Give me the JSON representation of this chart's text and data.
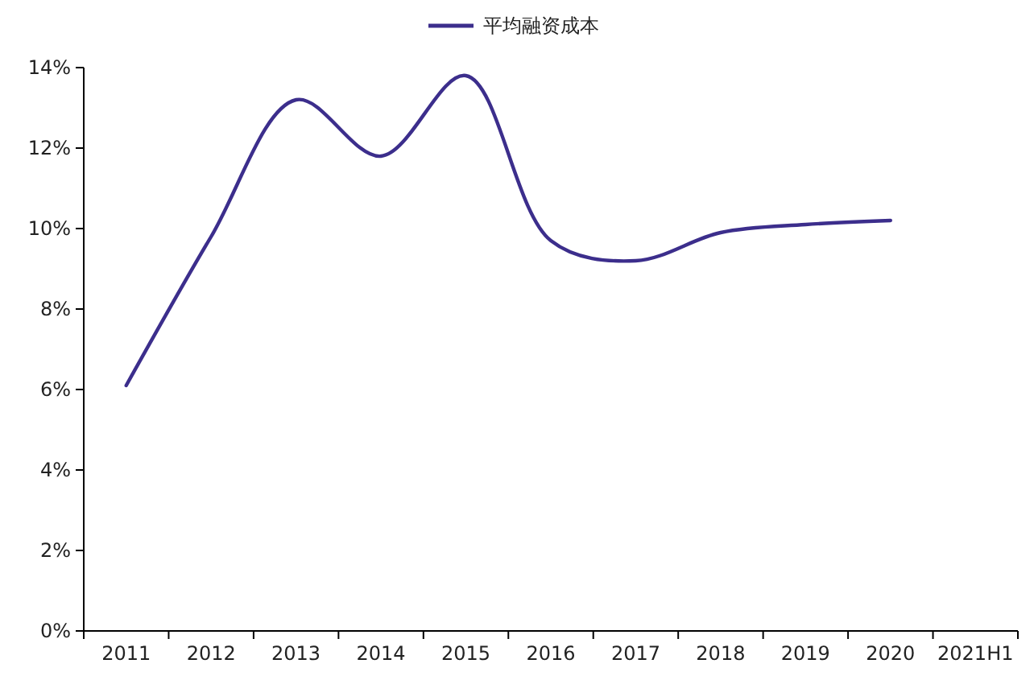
{
  "chart_data": {
    "type": "line",
    "categories": [
      "2011",
      "2012",
      "2013",
      "2014",
      "2015",
      "2016",
      "2017",
      "2018",
      "2019",
      "2020",
      "2021H1"
    ],
    "series": [
      {
        "name": "平均融资成本",
        "color": "#3c2e8c",
        "values": [
          6.1,
          9.8,
          13.2,
          11.8,
          13.8,
          9.7,
          9.2,
          9.9,
          10.1,
          10.2,
          null
        ]
      }
    ],
    "ylim": [
      0,
      14
    ],
    "yticks": [
      {
        "value": 0,
        "label": "0%"
      },
      {
        "value": 2,
        "label": "2%"
      },
      {
        "value": 4,
        "label": "4%"
      },
      {
        "value": 6,
        "label": "6%"
      },
      {
        "value": 8,
        "label": "8%"
      },
      {
        "value": 10,
        "label": "10%"
      },
      {
        "value": 12,
        "label": "12%"
      },
      {
        "value": 14,
        "label": "14%"
      }
    ],
    "grid": false,
    "legend": "top",
    "marker": "none",
    "line_style": "solid"
  }
}
